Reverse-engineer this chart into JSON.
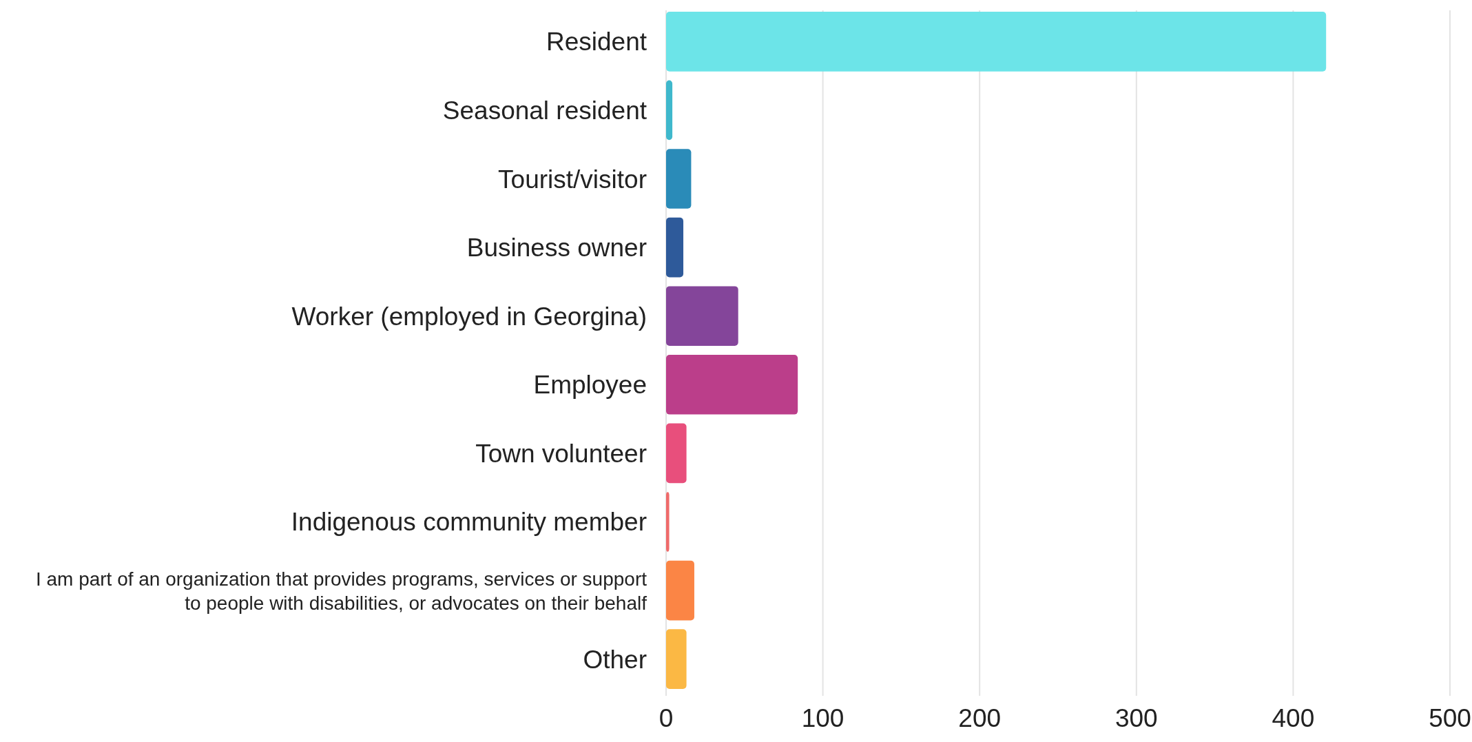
{
  "chart_data": {
    "type": "bar",
    "orientation": "horizontal",
    "categories": [
      "Resident",
      "Seasonal resident",
      "Tourist/visitor",
      "Business owner",
      "Worker (employed in Georgina)",
      "Employee",
      "Town volunteer",
      "Indigenous community member",
      "I am part of an organization that provides programs, services or support to people with disabilities, or advocates on their behalf",
      "Other"
    ],
    "values": [
      421,
      4,
      16,
      11,
      46,
      84,
      13,
      2,
      18,
      13
    ],
    "colors": [
      "#6ce4e8",
      "#3fb8cc",
      "#2a8bb8",
      "#2e5a9a",
      "#84459a",
      "#bb3e8a",
      "#e84f7c",
      "#ef6a6a",
      "#fb8545",
      "#fbb844"
    ],
    "xlim": [
      0,
      500
    ],
    "xticks": [
      0,
      100,
      200,
      300,
      400,
      500
    ],
    "grid": "x"
  }
}
